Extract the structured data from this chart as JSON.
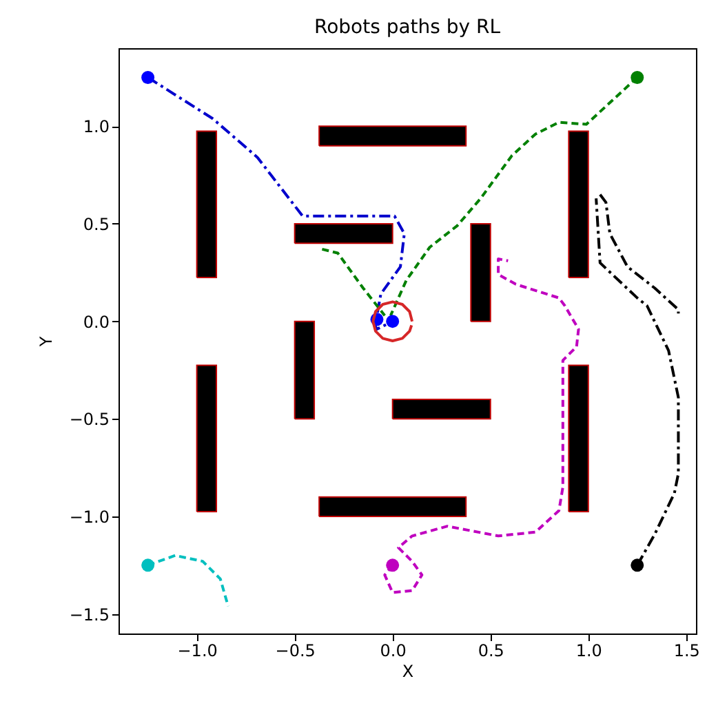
{
  "chart_data": {
    "type": "line",
    "title": "Robots paths by RL",
    "xlabel": "X",
    "ylabel": "Y",
    "xlim": [
      -1.4,
      1.55
    ],
    "ylim": [
      -1.6,
      1.4
    ],
    "xticks": [
      {
        "value": -1,
        "label": "−1.0"
      },
      {
        "value": -0.5,
        "label": "−0.5"
      },
      {
        "value": 0,
        "label": "0.0"
      },
      {
        "value": 0.5,
        "label": "0.5"
      },
      {
        "value": 1,
        "label": "1.0"
      },
      {
        "value": 1.5,
        "label": "1.5"
      }
    ],
    "yticks": [
      {
        "value": -1.5,
        "label": "−1.5"
      },
      {
        "value": -1,
        "label": "−1.0"
      },
      {
        "value": -0.5,
        "label": "−0.5"
      },
      {
        "value": 0,
        "label": "0.0"
      },
      {
        "value": 0.5,
        "label": "0.5"
      },
      {
        "value": 1,
        "label": "1.0"
      }
    ],
    "grid": false,
    "series": [
      {
        "type": "area",
        "color": "#000000",
        "x": [
          -1,
          -0.9,
          -0.9,
          -1,
          -1
        ],
        "values": [
          0.225,
          0.225,
          0.975,
          0.975,
          0.225
        ]
      },
      {
        "type": "area",
        "color": "#000000",
        "x": [
          -0.375,
          0.375,
          0.375,
          -0.375,
          -0.375
        ],
        "values": [
          0.9,
          0.9,
          1,
          1,
          0.9
        ]
      },
      {
        "type": "area",
        "color": "#000000",
        "x": [
          -0.5,
          0,
          0,
          -0.5,
          -0.5
        ],
        "values": [
          0.4,
          0.4,
          0.5,
          0.5,
          0.4
        ]
      },
      {
        "type": "area",
        "color": "#000000",
        "x": [
          0.9,
          1,
          1,
          0.9,
          0.9
        ],
        "values": [
          0.225,
          0.225,
          0.975,
          0.975,
          0.225
        ]
      },
      {
        "type": "area",
        "color": "#000000",
        "x": [
          0.4,
          0.5,
          0.5,
          0.4,
          0.4
        ],
        "values": [
          0,
          0,
          0.5,
          0.5,
          0
        ]
      },
      {
        "type": "area",
        "color": "#000000",
        "x": [
          -0.5,
          -0.4,
          -0.4,
          -0.5,
          -0.5
        ],
        "values": [
          -0.5,
          -0.5,
          0,
          0,
          -0.5
        ]
      },
      {
        "type": "area",
        "color": "#000000",
        "x": [
          -1,
          -0.9,
          -0.9,
          -1,
          -1
        ],
        "values": [
          -0.975,
          -0.975,
          -0.225,
          -0.225,
          -0.975
        ]
      },
      {
        "type": "area",
        "color": "#000000",
        "x": [
          0.9,
          1,
          1,
          0.9,
          0.9
        ],
        "values": [
          -0.975,
          -0.975,
          -0.225,
          -0.225,
          -0.975
        ]
      },
      {
        "type": "area",
        "color": "#000000",
        "x": [
          0,
          0.5,
          0.5,
          0,
          0
        ],
        "values": [
          -0.5,
          -0.5,
          -0.4,
          -0.4,
          -0.5
        ]
      },
      {
        "type": "area",
        "color": "#000000",
        "x": [
          -0.375,
          0.375,
          0.375,
          -0.375,
          -0.375
        ],
        "values": [
          -1,
          -1,
          -0.9,
          -0.9,
          -1
        ]
      },
      {
        "color": "#0000cc",
        "line_style": "dashdot",
        "x": [
          -1.25,
          -0.92,
          -0.69,
          -0.46,
          0.01,
          0.06,
          0.04,
          -0.06,
          -0.08,
          -0.1,
          -0.08,
          0
        ],
        "values": [
          1.25,
          1.04,
          0.84,
          0.54,
          0.54,
          0.45,
          0.28,
          0.14,
          0.03,
          0,
          -0.04,
          0
        ]
      },
      {
        "color": "#008000",
        "line_style": "dashed",
        "x": [
          1.25,
          0.99,
          0.85,
          0.73,
          0.61,
          0.45,
          0.33,
          0.19,
          0.07,
          -0.01
        ],
        "values": [
          1.25,
          1.01,
          1.02,
          0.96,
          0.85,
          0.63,
          0.49,
          0.38,
          0.21,
          0.03
        ]
      },
      {
        "color": "#008000",
        "line_style": "dashed",
        "x": [
          -0.36,
          -0.28,
          -0.15,
          -0.04
        ],
        "values": [
          0.37,
          0.35,
          0.17,
          0.03
        ]
      },
      {
        "color": "#00bfbf",
        "line_style": "dashed",
        "x": [
          -1.25,
          -1.11,
          -0.97,
          -0.88,
          -0.84
        ],
        "values": [
          -1.25,
          -1.2,
          -1.23,
          -1.32,
          -1.46
        ]
      },
      {
        "color": "#bf00bf",
        "line_style": "dashed",
        "x": [
          0,
          -0.04,
          0,
          0.1,
          0.15,
          0.1,
          0.03,
          0.1,
          0.28,
          0.54,
          0.73,
          0.85,
          0.87,
          0.87,
          0.94,
          0.95,
          0.88,
          0.85,
          0.63,
          0.54,
          0.54,
          0.59
        ],
        "values": [
          -1.25,
          -1.3,
          -1.39,
          -1.38,
          -1.3,
          -1.23,
          -1.16,
          -1.1,
          -1.05,
          -1.1,
          -1.08,
          -0.97,
          -0.85,
          -0.2,
          -0.13,
          -0.04,
          0.08,
          0.12,
          0.19,
          0.24,
          0.32,
          0.31
        ]
      },
      {
        "color": "#000000",
        "line_style": "dashdot",
        "x": [
          1.25,
          1.34,
          1.44,
          1.46,
          1.46,
          1.41,
          1.3,
          1.25,
          1.06,
          1.04
        ],
        "values": [
          -1.25,
          -1.09,
          -0.88,
          -0.78,
          -0.39,
          -0.15,
          0.08,
          0.12,
          0.3,
          0.63
        ]
      },
      {
        "color": "#000000",
        "line_style": "dashdot",
        "x": [
          1.06,
          1.09,
          1.11,
          1.2,
          1.34,
          1.46,
          1.46
        ],
        "values": [
          0.65,
          0.61,
          0.45,
          0.28,
          0.17,
          0.06,
          0.04
        ]
      },
      {
        "type": "scatter",
        "marker": "circle",
        "color": "#0000ff",
        "x": [
          -1.25,
          0,
          -0.08
        ],
        "values": [
          1.25,
          0,
          0.01
        ]
      },
      {
        "type": "scatter",
        "marker": "circle",
        "color": "#008000",
        "x": [
          1.25
        ],
        "values": [
          1.25
        ]
      },
      {
        "type": "scatter",
        "marker": "circle",
        "color": "#00bfbf",
        "x": [
          -1.25
        ],
        "values": [
          -1.25
        ]
      },
      {
        "type": "scatter",
        "marker": "circle",
        "color": "#bf00bf",
        "x": [
          0
        ],
        "values": [
          -1.25
        ]
      },
      {
        "type": "scatter",
        "marker": "circle",
        "color": "#000000",
        "x": [
          1.25
        ],
        "values": [
          -1.25
        ]
      },
      {
        "color": "#d62728",
        "line_style": "solid",
        "x": [
          0.1,
          0.087,
          0.05,
          0,
          -0.05,
          -0.087,
          -0.1,
          -0.087,
          -0.05,
          0,
          0.05,
          0.087,
          0.097
        ],
        "values": [
          0,
          0.05,
          0.087,
          0.1,
          0.087,
          0.05,
          0,
          -0.05,
          -0.087,
          -0.1,
          -0.087,
          -0.05,
          -0.02
        ]
      }
    ]
  }
}
